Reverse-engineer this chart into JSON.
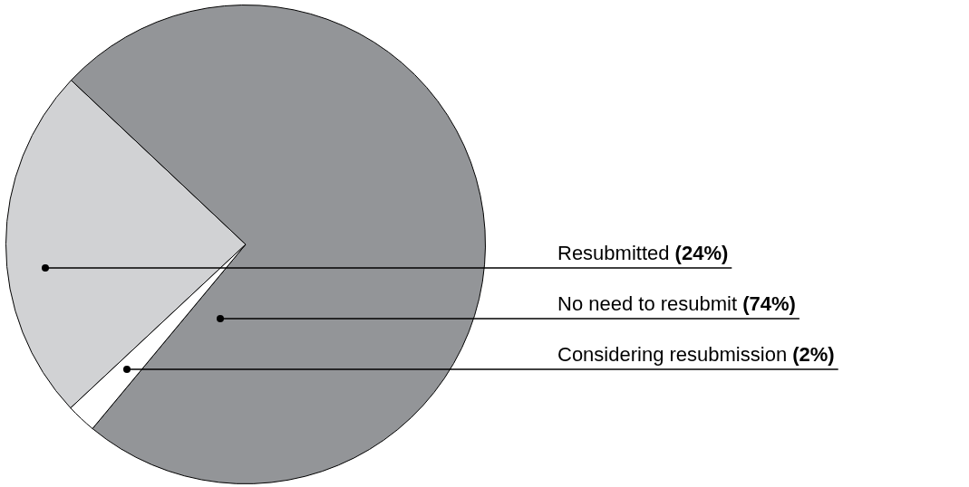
{
  "chart_data": {
    "type": "pie",
    "categories": [
      "Resubmitted",
      "No need to resubmit",
      "Considering resubmission"
    ],
    "values": [
      24,
      74,
      2
    ],
    "value_labels": [
      "(24%)",
      "(74%)",
      "(2%)"
    ],
    "colors": [
      "#d1d2d4",
      "#939598",
      "#ffffff"
    ],
    "legend": false
  }
}
